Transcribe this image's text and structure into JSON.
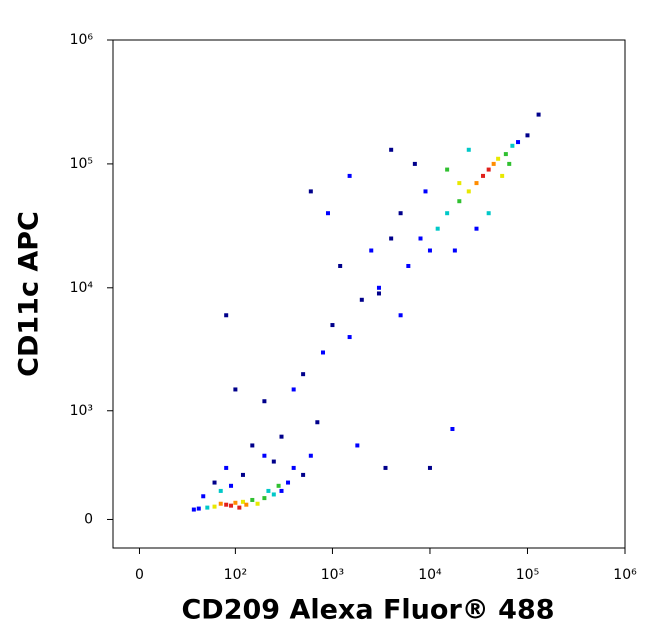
{
  "chart_data": {
    "type": "scatter",
    "x_label": "CD209 Alexa Fluor® 488",
    "y_label": "CD11c APC",
    "x_scale": "biexponential",
    "y_scale": "biexponential",
    "xlim": [
      -14,
      1000000
    ],
    "ylim": [
      -150,
      1000000
    ],
    "xticks": [
      0,
      {
        "value": 100,
        "label": "10²"
      },
      {
        "value": 1000,
        "label": "10³"
      },
      {
        "value": 10000,
        "label": "10⁴"
      },
      {
        "value": 100000,
        "label": "10⁵"
      },
      {
        "value": 1000000,
        "label": "10⁶"
      }
    ],
    "yticks": [
      0,
      {
        "value": 1000,
        "label": "10³"
      },
      {
        "value": 10000,
        "label": "10⁴"
      },
      {
        "value": 100000,
        "label": "10⁵"
      },
      {
        "value": 1000000,
        "label": "10⁶"
      }
    ],
    "x": [
      80,
      90,
      70,
      100,
      60,
      120,
      150,
      200,
      50,
      250,
      40,
      300,
      350,
      45,
      60,
      80,
      120,
      200,
      150,
      400,
      500,
      35,
      110,
      130,
      170,
      220,
      280,
      70,
      90,
      250,
      300,
      600,
      500,
      800,
      1000,
      1500,
      2000,
      3000,
      700,
      400,
      200,
      1200,
      2500,
      4000,
      900,
      600,
      1500,
      5000,
      3500,
      1800,
      100,
      80,
      10000,
      17000,
      35000,
      40000,
      30000,
      45000,
      25000,
      50000,
      20000,
      60000,
      15000,
      70000,
      12000,
      10000,
      8000,
      6000,
      80000,
      25000,
      15000,
      20000,
      9000,
      5000,
      7000,
      30000,
      40000,
      18000,
      100000,
      130000,
      4000,
      3000,
      55000,
      65000
    ],
    "values": [
      75,
      70,
      80,
      85,
      65,
      90,
      100,
      110,
      60,
      130,
      55,
      150,
      200,
      120,
      200,
      300,
      250,
      400,
      500,
      300,
      250,
      50,
      60,
      75,
      80,
      150,
      180,
      150,
      180,
      350,
      600,
      400,
      2000,
      3000,
      5000,
      4000,
      8000,
      10000,
      800,
      1500,
      1200,
      15000,
      20000,
      25000,
      40000,
      60000,
      80000,
      6000,
      300,
      500,
      1500,
      6000,
      300,
      700,
      80000,
      90000,
      70000,
      100000,
      60000,
      110000,
      50000,
      120000,
      40000,
      140000,
      30000,
      20000,
      25000,
      15000,
      150000,
      130000,
      90000,
      70000,
      60000,
      40000,
      100000,
      30000,
      40000,
      20000,
      170000,
      250000,
      130000,
      9000,
      80000,
      100000
    ],
    "colors": [
      "#e0201b",
      "#e0201b",
      "#ff8c00",
      "#ff8c00",
      "#e8e800",
      "#e8e800",
      "#30c030",
      "#30c030",
      "#00c8c8",
      "#00c8c8",
      "#0000ff",
      "#0000ff",
      "#0000ff",
      "#0000ff",
      "#00008b",
      "#0000ff",
      "#00008b",
      "#0000ff",
      "#00008b",
      "#0000ff",
      "#00008b",
      "#0000ff",
      "#e0201b",
      "#ff8c00",
      "#e8e800",
      "#00c8c8",
      "#30c030",
      "#00c8c8",
      "#0000ff",
      "#00008b",
      "#00008b",
      "#0000ff",
      "#00008b",
      "#0000ff",
      "#00008b",
      "#0000ff",
      "#00008b",
      "#0000ff",
      "#00008b",
      "#0000ff",
      "#00008b",
      "#00008b",
      "#0000ff",
      "#00008b",
      "#0000ff",
      "#00008b",
      "#0000ff",
      "#0000ff",
      "#00008b",
      "#0000ff",
      "#00008b",
      "#00008b",
      "#00008b",
      "#0000ff",
      "#e0201b",
      "#e0201b",
      "#ff8c00",
      "#ff8c00",
      "#e8e800",
      "#e8e800",
      "#30c030",
      "#30c030",
      "#00c8c8",
      "#00c8c8",
      "#00c8c8",
      "#0000ff",
      "#0000ff",
      "#0000ff",
      "#0000ff",
      "#00c8c8",
      "#30c030",
      "#e8e800",
      "#0000ff",
      "#00008b",
      "#00008b",
      "#0000ff",
      "#00c8c8",
      "#0000ff",
      "#00008b",
      "#00008b",
      "#00008b",
      "#00008b",
      "#e8e800",
      "#30c030"
    ]
  }
}
